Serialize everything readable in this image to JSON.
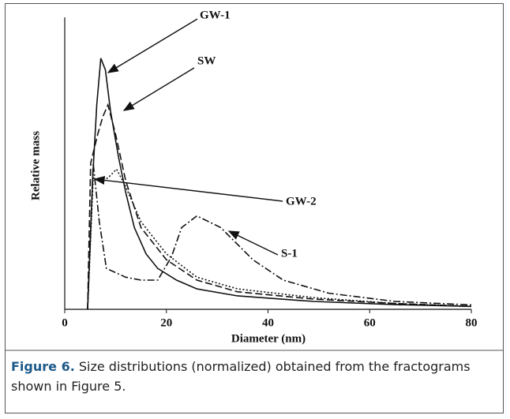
{
  "chart_data": {
    "type": "line",
    "xlabel": "Diameter (nm)",
    "ylabel": "Relative mass",
    "xlim": [
      0,
      80
    ],
    "xticks": [
      0,
      20,
      40,
      60,
      80
    ],
    "ylim": [
      0,
      1
    ],
    "series": [
      {
        "name": "GW-1",
        "color": "#111111",
        "linestyle": "solid",
        "x": [
          4.5,
          5.5,
          6.3,
          7.1,
          8,
          9,
          10.6,
          12,
          13.7,
          16,
          18.3,
          22,
          26,
          34,
          49,
          65,
          80
        ],
        "values": [
          0,
          0.45,
          0.7,
          0.86,
          0.82,
          0.68,
          0.52,
          0.4,
          0.28,
          0.19,
          0.14,
          0.1,
          0.07,
          0.046,
          0.027,
          0.016,
          0.01
        ]
      },
      {
        "name": "SW",
        "color": "#111111",
        "linestyle": "dashed",
        "x": [
          4.5,
          5.1,
          6.5,
          7.5,
          8.5,
          10,
          12,
          15,
          20,
          26,
          34,
          49,
          65,
          80
        ],
        "values": [
          0,
          0.5,
          0.6,
          0.66,
          0.7,
          0.6,
          0.44,
          0.28,
          0.17,
          0.1,
          0.06,
          0.035,
          0.02,
          0.01
        ]
      },
      {
        "name": "GW-2",
        "color": "#111111",
        "linestyle": "dotted",
        "x": [
          4.5,
          5.6,
          7,
          8.5,
          10.2,
          12,
          15,
          20,
          26,
          34,
          49,
          65,
          80
        ],
        "values": [
          0,
          0.45,
          0.44,
          0.45,
          0.48,
          0.42,
          0.3,
          0.19,
          0.11,
          0.07,
          0.04,
          0.02,
          0.01
        ]
      },
      {
        "name": "S-1",
        "color": "#111111",
        "linestyle": "dashdot",
        "x": [
          4.5,
          5.6,
          6.8,
          8.2,
          12,
          15,
          18.3,
          21,
          23,
          26,
          30.7,
          37,
          43,
          52,
          65,
          80
        ],
        "values": [
          0,
          0.5,
          0.3,
          0.14,
          0.11,
          0.1,
          0.1,
          0.18,
          0.28,
          0.32,
          0.28,
          0.17,
          0.1,
          0.055,
          0.027,
          0.015
        ]
      }
    ],
    "caption_label": "Figure 6.",
    "caption_text": "Size distributions (normalized) obtained from the fractograms shown in Figure 5."
  }
}
